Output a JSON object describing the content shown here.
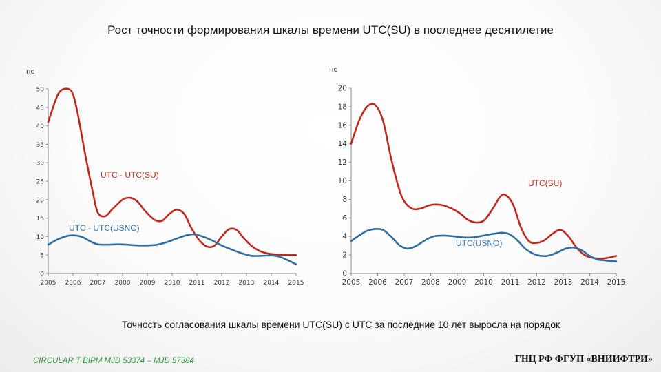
{
  "title": "Рост точности формирования шкалы времени UTC(SU) в последнее десятилетие",
  "caption": "Точность согласования шкалы времени UTC(SU) с UTC за последние 10 лет выросла на порядок",
  "footer": {
    "left": "CIRCULAR T BIPM  MJD 53374 – MJD 57384",
    "right": "ГНЦ РФ ФГУП «ВНИИФТРИ»"
  },
  "colors": {
    "red": "#c0281c",
    "blue": "#2f6fa3"
  },
  "chart_data": [
    {
      "type": "line",
      "title": "",
      "xlabel": "",
      "ylabel": "нс",
      "x_ticks": [
        "2005",
        "2006",
        "2007",
        "2008",
        "2009",
        "2010",
        "2011",
        "2012",
        "2013",
        "2014",
        "2015"
      ],
      "xlim": [
        2005,
        2015
      ],
      "ylim": [
        0,
        50
      ],
      "y_ticks": [
        0,
        5,
        10,
        15,
        20,
        25,
        30,
        35,
        40,
        45,
        50
      ],
      "grid": false,
      "series": [
        {
          "name": "UTC - UTC(SU)",
          "color": "red",
          "x": [
            2005.0,
            2005.3,
            2005.5,
            2005.8,
            2006.0,
            2006.2,
            2006.5,
            2006.8,
            2007.0,
            2007.3,
            2007.6,
            2008.0,
            2008.3,
            2008.6,
            2008.9,
            2009.3,
            2009.6,
            2009.9,
            2010.2,
            2010.5,
            2010.8,
            2011.1,
            2011.4,
            2011.7,
            2012.0,
            2012.3,
            2012.6,
            2012.9,
            2013.2,
            2013.5,
            2013.8,
            2014.1,
            2014.4,
            2014.7,
            2015.0
          ],
          "values": [
            41,
            47,
            49.5,
            50,
            48.5,
            43,
            32,
            22,
            16.5,
            15.5,
            17.5,
            20,
            20.5,
            19.5,
            17,
            14.5,
            14.3,
            16.2,
            17.3,
            16,
            12,
            9,
            7.3,
            7.5,
            10,
            12,
            11.8,
            9.5,
            7.5,
            6.2,
            5.5,
            5.2,
            5.1,
            5.0,
            5.0
          ]
        },
        {
          "name": "UTC - UTC(USNO)",
          "color": "blue",
          "x": [
            2005.0,
            2005.4,
            2005.8,
            2006.1,
            2006.4,
            2006.7,
            2007.0,
            2007.4,
            2007.8,
            2008.2,
            2008.6,
            2009.0,
            2009.4,
            2009.8,
            2010.2,
            2010.6,
            2010.9,
            2011.2,
            2011.6,
            2012.0,
            2012.4,
            2012.8,
            2013.2,
            2013.6,
            2014.0,
            2014.3,
            2014.6,
            2015.0
          ],
          "values": [
            7.8,
            9.3,
            10.2,
            10.3,
            9.8,
            8.7,
            7.9,
            7.8,
            7.9,
            7.8,
            7.6,
            7.6,
            7.8,
            8.5,
            9.5,
            10.4,
            10.6,
            10.1,
            9.0,
            7.6,
            6.5,
            5.5,
            4.8,
            4.8,
            4.9,
            4.6,
            3.8,
            2.5
          ]
        }
      ],
      "annotations": [
        "UTC - UTC(SU)",
        "UTC - UTC(USNO)"
      ]
    },
    {
      "type": "line",
      "title": "",
      "xlabel": "",
      "ylabel": "нс",
      "x_ticks": [
        "2005",
        "2006",
        "2007",
        "2008",
        "2009",
        "2010",
        "2011",
        "2012",
        "2013",
        "2014",
        "2015"
      ],
      "xlim": [
        2005,
        2015
      ],
      "ylim": [
        0,
        20
      ],
      "y_ticks": [
        0,
        2,
        4,
        6,
        8,
        10,
        12,
        14,
        16,
        18,
        20
      ],
      "grid": false,
      "series": [
        {
          "name": "UTC(SU)",
          "color": "red",
          "x": [
            2005.0,
            2005.3,
            2005.6,
            2005.9,
            2006.2,
            2006.5,
            2006.8,
            2007.0,
            2007.3,
            2007.6,
            2008.0,
            2008.4,
            2008.8,
            2009.1,
            2009.4,
            2009.7,
            2010.0,
            2010.3,
            2010.6,
            2010.8,
            2011.1,
            2011.4,
            2011.7,
            2012.0,
            2012.3,
            2012.6,
            2012.9,
            2013.2,
            2013.5,
            2013.8,
            2014.1,
            2014.4,
            2014.7,
            2015.0
          ],
          "values": [
            14,
            16.5,
            18,
            18.2,
            16.5,
            12.5,
            9.2,
            7.8,
            7.0,
            7.0,
            7.4,
            7.4,
            7.0,
            6.5,
            5.8,
            5.5,
            5.7,
            6.8,
            8.2,
            8.5,
            7.5,
            5.0,
            3.5,
            3.3,
            3.6,
            4.3,
            4.7,
            4.0,
            2.8,
            2.0,
            1.7,
            1.6,
            1.7,
            1.9
          ]
        },
        {
          "name": "UTC(USNO)",
          "color": "blue",
          "x": [
            2005.0,
            2005.3,
            2005.6,
            2005.9,
            2006.2,
            2006.5,
            2006.8,
            2007.1,
            2007.4,
            2007.8,
            2008.1,
            2008.5,
            2008.9,
            2009.2,
            2009.6,
            2010.0,
            2010.4,
            2010.7,
            2011.0,
            2011.3,
            2011.6,
            2012.0,
            2012.4,
            2012.8,
            2013.1,
            2013.4,
            2013.7,
            2014.0,
            2014.3,
            2014.6,
            2015.0
          ],
          "values": [
            3.5,
            4.1,
            4.6,
            4.8,
            4.7,
            4.0,
            3.1,
            2.7,
            2.9,
            3.6,
            4.0,
            4.1,
            4.0,
            3.9,
            3.9,
            4.1,
            4.3,
            4.4,
            4.2,
            3.5,
            2.6,
            2.0,
            1.9,
            2.3,
            2.7,
            2.8,
            2.5,
            1.9,
            1.5,
            1.4,
            1.3
          ]
        }
      ],
      "annotations": [
        "UTC(SU)",
        "UTC(USNO)"
      ]
    }
  ]
}
